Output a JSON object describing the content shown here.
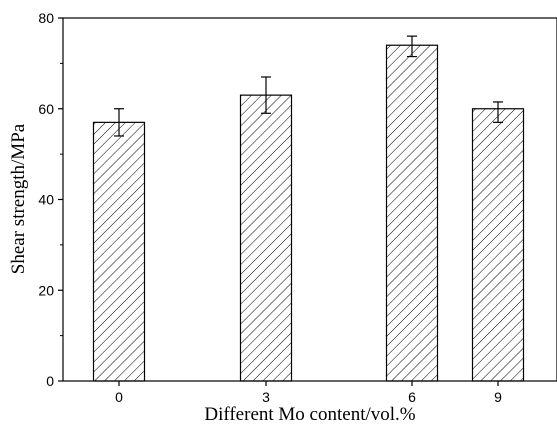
{
  "chart_data": {
    "type": "bar",
    "categories": [
      "0",
      "3",
      "6",
      "9"
    ],
    "values": [
      57,
      63,
      74,
      60
    ],
    "error_bars": [
      {
        "low": 54,
        "high": 60
      },
      {
        "low": 59,
        "high": 67
      },
      {
        "low": 71.5,
        "high": 76
      },
      {
        "low": 57,
        "high": 61.5
      }
    ],
    "title": "",
    "xlabel": "Different Mo content/vol.%",
    "ylabel": "Shear strength/MPa",
    "ylim": [
      0,
      80
    ],
    "yticks": [
      "0",
      "20",
      "40",
      "60",
      "80"
    ],
    "bar_fill": "hatched",
    "grid": false,
    "colors": {
      "bar_edge": "#000000",
      "hatch": "#000000",
      "background": "#ffffff"
    }
  }
}
